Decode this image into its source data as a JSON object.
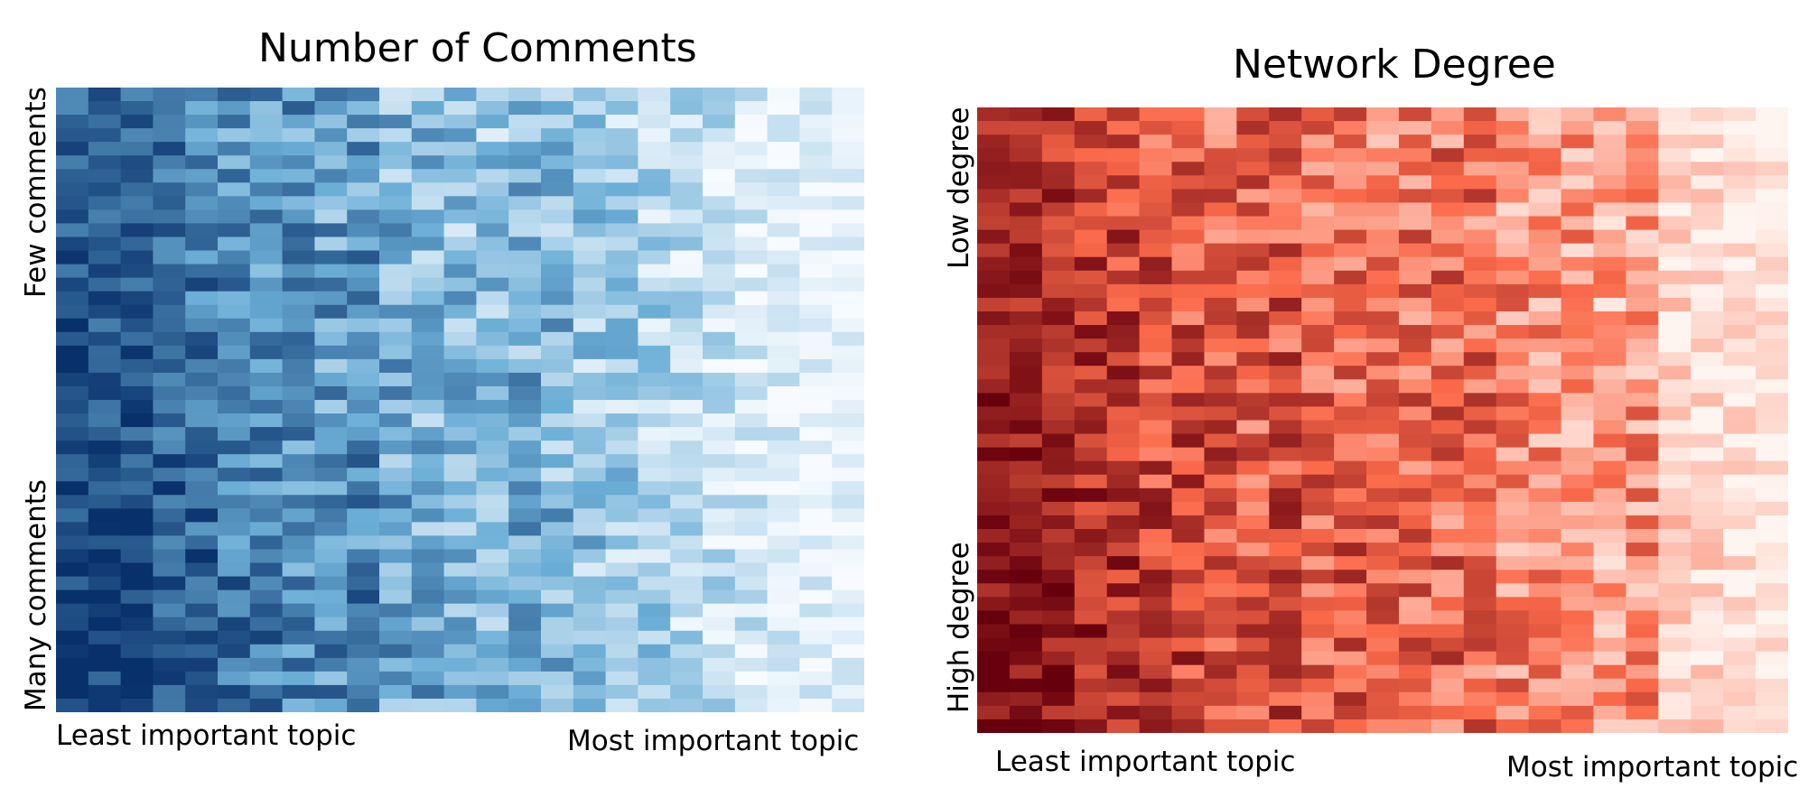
{
  "chart_data": [
    {
      "type": "heatmap",
      "title": "Number of Comments",
      "xlabel_left": "Least important topic",
      "xlabel_right": "Most important topic",
      "ylabel_top": "Few comments",
      "ylabel_bottom": "Many comments",
      "colormap": "Blues",
      "colors": {
        "low": "#f7fbff",
        "mid": "#6baed6",
        "high": "#08306b"
      },
      "n_columns": 25,
      "n_rows": 46,
      "x_order": "least important topic → most important topic",
      "y_order": "few comments (top) → many comments (bottom)",
      "column_mean_intensity": [
        0.88,
        0.84,
        0.86,
        0.8,
        0.72,
        0.66,
        0.64,
        0.62,
        0.56,
        0.6,
        0.46,
        0.44,
        0.4,
        0.38,
        0.46,
        0.42,
        0.34,
        0.3,
        0.28,
        0.22,
        0.2,
        0.14,
        0.1,
        0.08,
        0.06
      ]
    },
    {
      "type": "heatmap",
      "title": "Network Degree",
      "xlabel_left": "Least important topic",
      "xlabel_right": "Most important topic",
      "ylabel_top": "Low degree",
      "ylabel_bottom": "High degree",
      "colormap": "Reds",
      "colors": {
        "low": "#fff5f0",
        "mid": "#fb6a4a",
        "high": "#67000d"
      },
      "n_columns": 25,
      "n_rows": 46,
      "x_order": "least important topic → most important topic",
      "y_order": "low degree (top) → high degree (bottom)",
      "column_mean_intensity": [
        0.86,
        0.84,
        0.8,
        0.76,
        0.72,
        0.64,
        0.62,
        0.58,
        0.56,
        0.6,
        0.5,
        0.52,
        0.46,
        0.48,
        0.5,
        0.5,
        0.38,
        0.36,
        0.34,
        0.3,
        0.36,
        0.12,
        0.1,
        0.08,
        0.06
      ]
    }
  ]
}
